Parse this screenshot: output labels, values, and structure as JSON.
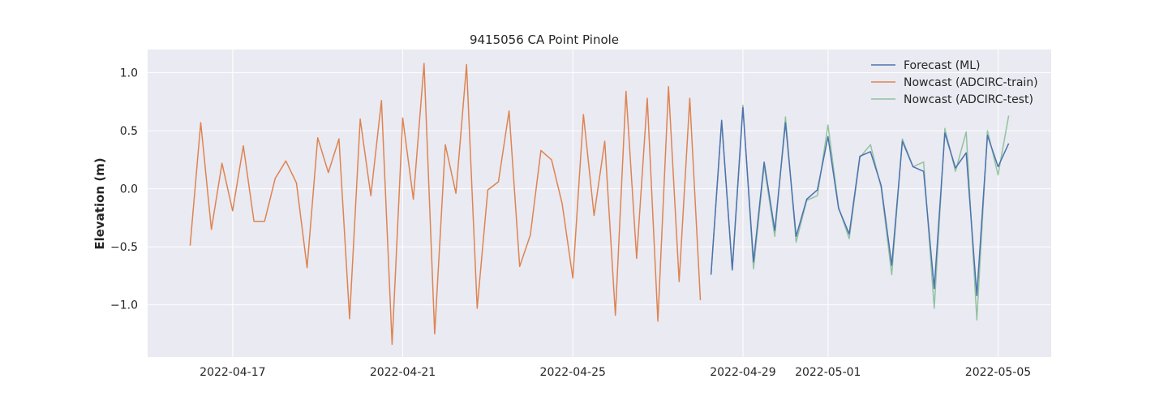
{
  "chart_data": {
    "type": "line",
    "title": "9415056 CA Point Pinole",
    "xlabel": "",
    "ylabel": "Elevation (m)",
    "xlim": [
      "2022-04-15T00:00",
      "2022-05-06T06:00"
    ],
    "ylim": [
      -1.45,
      1.2
    ],
    "grid": true,
    "legend_position": "top-right",
    "x_ticks": [
      "2022-04-17",
      "2022-04-21",
      "2022-04-25",
      "2022-04-29",
      "2022-05-01",
      "2022-05-05"
    ],
    "y_ticks": [
      1.0,
      0.5,
      0.0,
      -0.5,
      -1.0
    ],
    "y_tick_labels": [
      "1.0",
      "0.5",
      "0.0",
      "−0.5",
      "−1.0"
    ],
    "series": [
      {
        "name": "Forecast (ML)",
        "color": "#4c72b0",
        "x": [
          "2022-04-28T06:00",
          "2022-04-28T12:00",
          "2022-04-28T18:00",
          "2022-04-29T00:00",
          "2022-04-29T06:00",
          "2022-04-29T12:00",
          "2022-04-29T18:00",
          "2022-04-30T00:00",
          "2022-04-30T06:00",
          "2022-04-30T12:00",
          "2022-04-30T18:00",
          "2022-05-01T00:00",
          "2022-05-01T06:00",
          "2022-05-01T12:00",
          "2022-05-01T18:00",
          "2022-05-02T00:00",
          "2022-05-02T06:00",
          "2022-05-02T12:00",
          "2022-05-02T18:00",
          "2022-05-03T00:00",
          "2022-05-03T06:00",
          "2022-05-03T12:00",
          "2022-05-03T18:00",
          "2022-05-04T00:00",
          "2022-05-04T06:00",
          "2022-05-04T12:00",
          "2022-05-04T18:00",
          "2022-05-05T00:00",
          "2022-05-05T06:00",
          "2022-05-05T12:00"
        ],
        "y": [
          -0.74,
          0.59,
          -0.7,
          0.7,
          -0.63,
          0.23,
          -0.36,
          0.57,
          -0.41,
          -0.09,
          -0.01,
          0.45,
          -0.17,
          -0.39,
          0.28,
          0.32,
          0.03,
          -0.66,
          0.41,
          0.19,
          0.15,
          -0.86,
          0.48,
          0.18,
          0.31,
          -0.92,
          0.46,
          0.19,
          0.39,
          null
        ]
      },
      {
        "name": "Nowcast (ADCIRC-train)",
        "color": "#dd8452",
        "x": [
          "2022-04-16T00:00",
          "2022-04-16T06:00",
          "2022-04-16T12:00",
          "2022-04-16T18:00",
          "2022-04-17T00:00",
          "2022-04-17T06:00",
          "2022-04-17T12:00",
          "2022-04-17T18:00",
          "2022-04-18T00:00",
          "2022-04-18T06:00",
          "2022-04-18T12:00",
          "2022-04-18T18:00",
          "2022-04-19T00:00",
          "2022-04-19T06:00",
          "2022-04-19T12:00",
          "2022-04-19T18:00",
          "2022-04-20T00:00",
          "2022-04-20T06:00",
          "2022-04-20T12:00",
          "2022-04-20T18:00",
          "2022-04-21T00:00",
          "2022-04-21T06:00",
          "2022-04-21T12:00",
          "2022-04-21T18:00",
          "2022-04-22T00:00",
          "2022-04-22T06:00",
          "2022-04-22T12:00",
          "2022-04-22T18:00",
          "2022-04-23T00:00",
          "2022-04-23T06:00",
          "2022-04-23T12:00",
          "2022-04-23T18:00",
          "2022-04-24T00:00",
          "2022-04-24T06:00",
          "2022-04-24T12:00",
          "2022-04-24T18:00",
          "2022-04-25T00:00",
          "2022-04-25T06:00",
          "2022-04-25T12:00",
          "2022-04-25T18:00",
          "2022-04-26T00:00",
          "2022-04-26T06:00",
          "2022-04-26T12:00",
          "2022-04-26T18:00",
          "2022-04-27T00:00",
          "2022-04-27T06:00",
          "2022-04-27T12:00",
          "2022-04-27T18:00",
          "2022-04-28T00:00"
        ],
        "y": [
          -0.49,
          0.57,
          -0.35,
          0.22,
          -0.19,
          0.37,
          -0.28,
          -0.28,
          0.09,
          0.24,
          0.05,
          -0.68,
          0.44,
          0.14,
          0.43,
          -1.12,
          0.6,
          -0.06,
          0.76,
          -1.34,
          0.61,
          -0.09,
          1.08,
          -1.25,
          0.38,
          -0.04,
          1.07,
          -1.03,
          -0.01,
          0.06,
          0.67,
          -0.67,
          -0.4,
          0.33,
          0.25,
          -0.13,
          -0.77,
          0.64,
          -0.23,
          0.41,
          -1.09,
          0.84,
          -0.6,
          0.78,
          -1.14,
          0.88,
          -0.8,
          0.78,
          -0.96
        ]
      },
      {
        "name": "Nowcast (ADCIRC-test)",
        "color": "#55a868",
        "x": [
          "2022-04-28T06:00",
          "2022-04-28T12:00",
          "2022-04-28T18:00",
          "2022-04-29T00:00",
          "2022-04-29T06:00",
          "2022-04-29T12:00",
          "2022-04-29T18:00",
          "2022-04-30T00:00",
          "2022-04-30T06:00",
          "2022-04-30T12:00",
          "2022-04-30T18:00",
          "2022-05-01T00:00",
          "2022-05-01T06:00",
          "2022-05-01T12:00",
          "2022-05-01T18:00",
          "2022-05-02T00:00",
          "2022-05-02T06:00",
          "2022-05-02T12:00",
          "2022-05-02T18:00",
          "2022-05-03T00:00",
          "2022-05-03T06:00",
          "2022-05-03T12:00",
          "2022-05-03T18:00",
          "2022-05-04T00:00",
          "2022-05-04T06:00",
          "2022-05-04T12:00",
          "2022-05-04T18:00",
          "2022-05-05T00:00",
          "2022-05-05T06:00",
          "2022-05-05T12:00"
        ],
        "y": [
          -0.74,
          0.58,
          -0.69,
          0.72,
          -0.69,
          0.2,
          -0.41,
          0.62,
          -0.46,
          -0.1,
          -0.06,
          0.55,
          -0.16,
          -0.43,
          0.27,
          0.38,
          0.01,
          -0.74,
          0.43,
          0.19,
          0.23,
          -1.03,
          0.52,
          0.15,
          0.49,
          -1.13,
          0.5,
          0.12,
          0.63,
          null
        ]
      }
    ]
  }
}
